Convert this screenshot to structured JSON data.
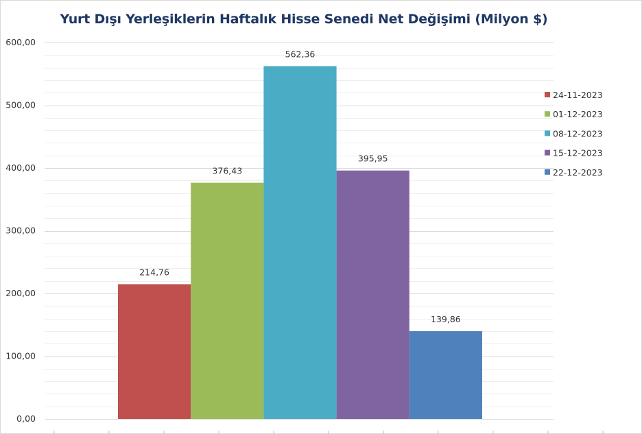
{
  "chart_data": {
    "type": "bar",
    "title": "Yurt Dışı Yerleşiklerin Haftalık Hisse Senedi Net Değişimi (Milyon $)",
    "ylim": [
      0,
      600
    ],
    "yticks": [
      "0,00",
      "100,00",
      "200,00",
      "300,00",
      "400,00",
      "500,00",
      "600,00"
    ],
    "grid": true,
    "legend_position": "right",
    "series": [
      {
        "name": "24-11-2023",
        "value": 214.76,
        "label": "214,76",
        "color": "#c0504d"
      },
      {
        "name": "01-12-2023",
        "value": 376.43,
        "label": "376,43",
        "color": "#9bbb59"
      },
      {
        "name": "08-12-2023",
        "value": 562.36,
        "label": "562,36",
        "color": "#4bacc6"
      },
      {
        "name": "15-12-2023",
        "value": 395.95,
        "label": "395,95",
        "color": "#8064a2"
      },
      {
        "name": "22-12-2023",
        "value": 139.86,
        "label": "139,86",
        "color": "#4f81bd"
      }
    ]
  }
}
